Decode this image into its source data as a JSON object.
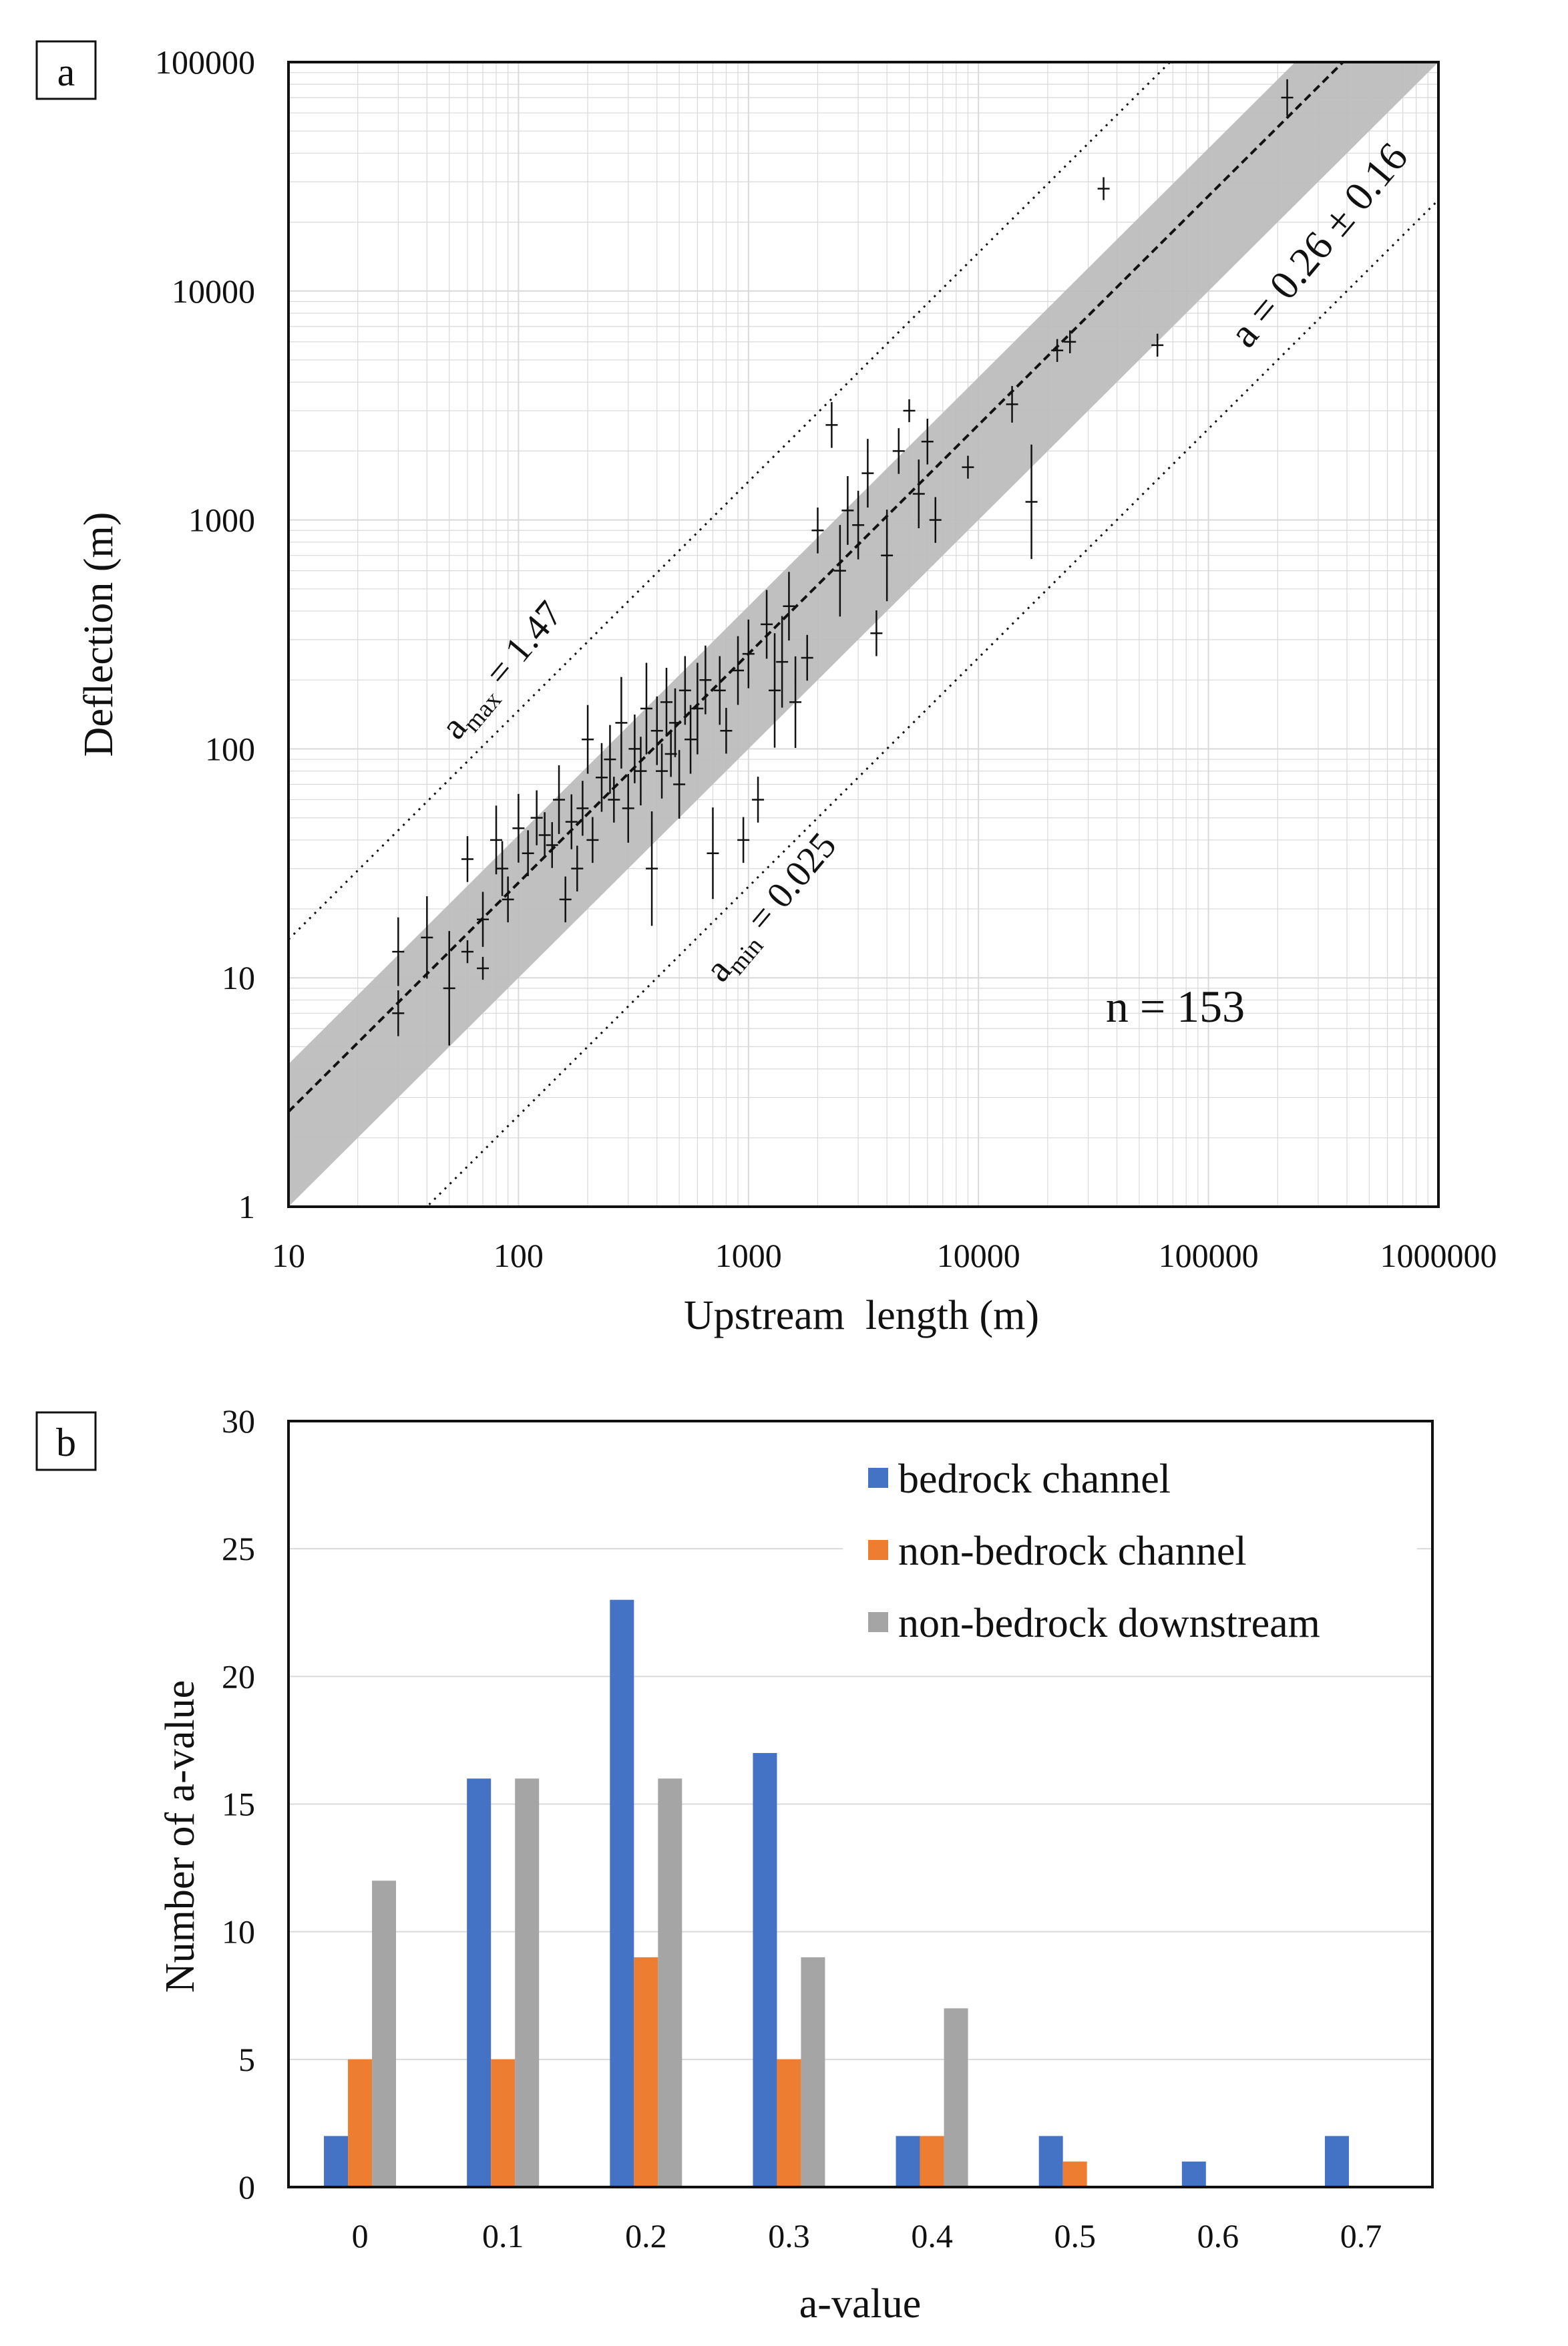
{
  "colors": {
    "band": "#bdbdbd",
    "bedrock_channel": "#4472c4",
    "non_bedrock_channel": "#ed7d31",
    "non_bedrock_downstream": "#a5a5a5",
    "ink": "#111111",
    "grid": "#d9d9d9"
  },
  "chart_data": [
    {
      "panel_label": "a",
      "type": "scatter",
      "scale": "log-log",
      "xlabel": "Upstream  length (m)",
      "ylabel": "Deflection (m)",
      "xlim": [
        10,
        1000000
      ],
      "ylim": [
        1,
        100000
      ],
      "x_tick_labels": [
        "10",
        "100",
        "1000",
        "10000",
        "100000",
        "1000000"
      ],
      "y_tick_labels": [
        "1",
        "10",
        "100",
        "1000",
        "10000",
        "100000"
      ],
      "grid": true,
      "fit_line": {
        "a": 0.26,
        "label": "a = 0.26 ± 0.16"
      },
      "band": {
        "a_low": 0.1,
        "a_high": 0.42
      },
      "bound_max": {
        "a": 1.47,
        "label_prefix": "a",
        "label_sub": "max",
        "label_suffix": " = 1.47"
      },
      "bound_min": {
        "a": 0.025,
        "label_prefix": "a",
        "label_sub": "min",
        "label_suffix": " = 0.025"
      },
      "n_label": "n = 153",
      "points": [
        {
          "x": 30,
          "y": 13,
          "err": 0.15
        },
        {
          "x": 30,
          "y": 7,
          "err": 0.1
        },
        {
          "x": 40,
          "y": 15,
          "err": 0.18
        },
        {
          "x": 50,
          "y": 9,
          "err": 0.25
        },
        {
          "x": 60,
          "y": 33,
          "err": 0.1
        },
        {
          "x": 60,
          "y": 13,
          "err": 0.05
        },
        {
          "x": 70,
          "y": 18,
          "err": 0.12
        },
        {
          "x": 70,
          "y": 11,
          "err": 0.05
        },
        {
          "x": 80,
          "y": 40,
          "err": 0.15
        },
        {
          "x": 85,
          "y": 30,
          "err": 0.12
        },
        {
          "x": 90,
          "y": 22,
          "err": 0.1
        },
        {
          "x": 100,
          "y": 45,
          "err": 0.15
        },
        {
          "x": 110,
          "y": 35,
          "err": 0.1
        },
        {
          "x": 120,
          "y": 50,
          "err": 0.12
        },
        {
          "x": 130,
          "y": 42,
          "err": 0.1
        },
        {
          "x": 140,
          "y": 38,
          "err": 0.1
        },
        {
          "x": 150,
          "y": 60,
          "err": 0.15
        },
        {
          "x": 160,
          "y": 22,
          "err": 0.1
        },
        {
          "x": 170,
          "y": 48,
          "err": 0.12
        },
        {
          "x": 180,
          "y": 30,
          "err": 0.1
        },
        {
          "x": 190,
          "y": 55,
          "err": 0.12
        },
        {
          "x": 200,
          "y": 110,
          "err": 0.15
        },
        {
          "x": 210,
          "y": 40,
          "err": 0.1
        },
        {
          "x": 230,
          "y": 75,
          "err": 0.15
        },
        {
          "x": 250,
          "y": 90,
          "err": 0.15
        },
        {
          "x": 260,
          "y": 60,
          "err": 0.1
        },
        {
          "x": 280,
          "y": 130,
          "err": 0.2
        },
        {
          "x": 300,
          "y": 55,
          "err": 0.15
        },
        {
          "x": 320,
          "y": 100,
          "err": 0.15
        },
        {
          "x": 340,
          "y": 80,
          "err": 0.15
        },
        {
          "x": 360,
          "y": 150,
          "err": 0.2
        },
        {
          "x": 380,
          "y": 30,
          "err": 0.25
        },
        {
          "x": 400,
          "y": 120,
          "err": 0.15
        },
        {
          "x": 420,
          "y": 80,
          "err": 0.12
        },
        {
          "x": 440,
          "y": 160,
          "err": 0.15
        },
        {
          "x": 460,
          "y": 95,
          "err": 0.1
        },
        {
          "x": 480,
          "y": 130,
          "err": 0.15
        },
        {
          "x": 500,
          "y": 70,
          "err": 0.15
        },
        {
          "x": 530,
          "y": 180,
          "err": 0.15
        },
        {
          "x": 560,
          "y": 110,
          "err": 0.15
        },
        {
          "x": 600,
          "y": 150,
          "err": 0.2
        },
        {
          "x": 650,
          "y": 200,
          "err": 0.15
        },
        {
          "x": 700,
          "y": 35,
          "err": 0.2
        },
        {
          "x": 750,
          "y": 180,
          "err": 0.15
        },
        {
          "x": 800,
          "y": 120,
          "err": 0.1
        },
        {
          "x": 900,
          "y": 220,
          "err": 0.15
        },
        {
          "x": 950,
          "y": 40,
          "err": 0.1
        },
        {
          "x": 1000,
          "y": 260,
          "err": 0.15
        },
        {
          "x": 1100,
          "y": 60,
          "err": 0.1
        },
        {
          "x": 1200,
          "y": 350,
          "err": 0.15
        },
        {
          "x": 1300,
          "y": 180,
          "err": 0.25
        },
        {
          "x": 1400,
          "y": 240,
          "err": 0.2
        },
        {
          "x": 1500,
          "y": 420,
          "err": 0.15
        },
        {
          "x": 1600,
          "y": 160,
          "err": 0.2
        },
        {
          "x": 1800,
          "y": 250,
          "err": 0.1
        },
        {
          "x": 2000,
          "y": 900,
          "err": 0.1
        },
        {
          "x": 2300,
          "y": 2600,
          "err": 0.1
        },
        {
          "x": 2500,
          "y": 600,
          "err": 0.2
        },
        {
          "x": 2700,
          "y": 1100,
          "err": 0.15
        },
        {
          "x": 3000,
          "y": 950,
          "err": 0.15
        },
        {
          "x": 3300,
          "y": 1600,
          "err": 0.15
        },
        {
          "x": 3600,
          "y": 320,
          "err": 0.1
        },
        {
          "x": 4000,
          "y": 700,
          "err": 0.2
        },
        {
          "x": 4500,
          "y": 2000,
          "err": 0.1
        },
        {
          "x": 5000,
          "y": 3000,
          "err": 0.05
        },
        {
          "x": 5500,
          "y": 1300,
          "err": 0.15
        },
        {
          "x": 6000,
          "y": 2200,
          "err": 0.1
        },
        {
          "x": 6500,
          "y": 1000,
          "err": 0.1
        },
        {
          "x": 9000,
          "y": 1700,
          "err": 0.05
        },
        {
          "x": 14000,
          "y": 3200,
          "err": 0.08
        },
        {
          "x": 17000,
          "y": 1200,
          "err": 0.25
        },
        {
          "x": 22000,
          "y": 5500,
          "err": 0.05
        },
        {
          "x": 25000,
          "y": 6000,
          "err": 0.05
        },
        {
          "x": 35000,
          "y": 28000,
          "err": 0.05
        },
        {
          "x": 60000,
          "y": 5800,
          "err": 0.05
        },
        {
          "x": 220000,
          "y": 70000,
          "err": 0.08
        }
      ]
    },
    {
      "panel_label": "b",
      "type": "bar",
      "xlabel": "a-value",
      "ylabel": "Number of a-value",
      "ylim": [
        0,
        30
      ],
      "y_ticks": [
        0,
        5,
        10,
        15,
        20,
        25,
        30
      ],
      "categories": [
        "0",
        "0.1",
        "0.2",
        "0.3",
        "0.4",
        "0.5",
        "0.6",
        "0.7"
      ],
      "legend_position": "top-right",
      "series": [
        {
          "name": "bedrock channel",
          "values": [
            2,
            16,
            23,
            17,
            2,
            2,
            1,
            2
          ]
        },
        {
          "name": "non-bedrock channel",
          "values": [
            5,
            5,
            9,
            5,
            2,
            1,
            0,
            0
          ]
        },
        {
          "name": "non-bedrock downstream",
          "values": [
            12,
            16,
            16,
            9,
            7,
            0,
            0,
            0
          ]
        }
      ]
    }
  ]
}
